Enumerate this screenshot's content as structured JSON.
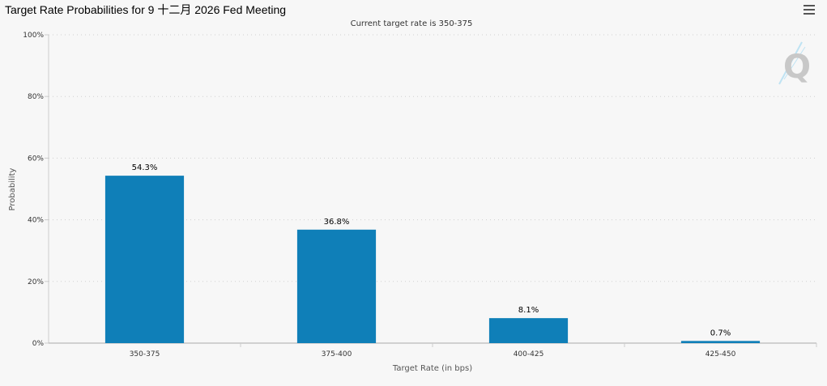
{
  "header": {
    "title": "Target Rate Probabilities for 9 十二月 2026 Fed Meeting",
    "menu_icon": "hamburger-menu-icon"
  },
  "chart_data": {
    "type": "bar",
    "title": "Target Rate Probabilities for 9 十二月 2026 Fed Meeting",
    "subtitle": "Current target rate is 350-375",
    "xlabel": "Target Rate (in bps)",
    "ylabel": "Probability",
    "categories": [
      "350-375",
      "375-400",
      "400-425",
      "425-450"
    ],
    "values": [
      54.3,
      36.8,
      8.1,
      0.7
    ],
    "data_labels": [
      "54.3%",
      "36.8%",
      "8.1%",
      "0.7%"
    ],
    "ylim": [
      0,
      100
    ],
    "yticks": [
      0,
      20,
      40,
      60,
      80,
      100
    ],
    "ytick_labels": [
      "0%",
      "20%",
      "40%",
      "60%",
      "80%",
      "100%"
    ],
    "grid": true,
    "bar_color": "#0f7fb8",
    "logo": "Q"
  }
}
